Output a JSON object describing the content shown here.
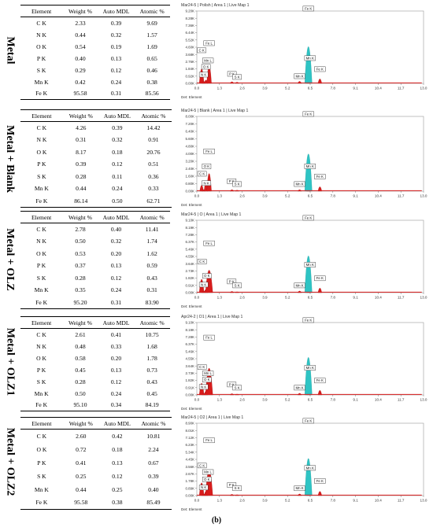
{
  "caption": "(b)",
  "headers": [
    "Element",
    "Weight %",
    "Auto MDL",
    "Atomic %"
  ],
  "panels": [
    {
      "label": "Metal",
      "rows": [
        [
          "C K",
          "2.33",
          "0.39",
          "9.69"
        ],
        [
          "N K",
          "0.44",
          "0.32",
          "1.57"
        ],
        [
          "O K",
          "0.54",
          "0.19",
          "1.69"
        ],
        [
          "P K",
          "0.40",
          "0.13",
          "0.65"
        ],
        [
          "S K",
          "0.29",
          "0.12",
          "0.46"
        ],
        [
          "Mn K",
          "0.42",
          "0.24",
          "0.38"
        ],
        [
          "Fe K",
          "95.58",
          "0.31",
          "85.56"
        ]
      ]
    },
    {
      "label": "Metal + Blank",
      "rows": [
        [
          "C K",
          "4.26",
          "0.39",
          "14.42"
        ],
        [
          "N K",
          "0.31",
          "0.32",
          "0.91"
        ],
        [
          "O K",
          "8.17",
          "0.18",
          "20.76"
        ],
        [
          "P K",
          "0.39",
          "0.12",
          "0.51"
        ],
        [
          "S K",
          "0.28",
          "0.11",
          "0.36"
        ],
        [
          "Mn K",
          "0.44",
          "0.24",
          "0.33"
        ],
        [
          "Fe K",
          "86.14",
          "0.50",
          "62.71"
        ]
      ]
    },
    {
      "label": "Metal + OLZ",
      "rows": [
        [
          "C K",
          "2.78",
          "0.40",
          "11.41"
        ],
        [
          "N K",
          "0.50",
          "0.32",
          "1.74"
        ],
        [
          "O K",
          "0.53",
          "0.20",
          "1.62"
        ],
        [
          "P K",
          "0.37",
          "0.13",
          "0.59"
        ],
        [
          "S K",
          "0.28",
          "0.12",
          "0.43"
        ],
        [
          "Mn K",
          "0.35",
          "0.24",
          "0.31"
        ],
        [
          "Fe K",
          "95.20",
          "0.31",
          "83.90"
        ]
      ]
    },
    {
      "label": "Metal + OLZ1",
      "rows": [
        [
          "C K",
          "2.61",
          "0.41",
          "10.75"
        ],
        [
          "N K",
          "0.48",
          "0.33",
          "1.68"
        ],
        [
          "O K",
          "0.58",
          "0.20",
          "1.78"
        ],
        [
          "P K",
          "0.45",
          "0.13",
          "0.73"
        ],
        [
          "S K",
          "0.28",
          "0.12",
          "0.43"
        ],
        [
          "Mn K",
          "0.50",
          "0.24",
          "0.45"
        ],
        [
          "Fe K",
          "95.10",
          "0.34",
          "84.19"
        ]
      ]
    },
    {
      "label": "Metal + OLZ2",
      "rows": [
        [
          "C K",
          "2.60",
          "0.42",
          "10.81"
        ],
        [
          "O K",
          "0.72",
          "0.18",
          "2.24"
        ],
        [
          "P K",
          "0.41",
          "0.13",
          "0.67"
        ],
        [
          "S K",
          "0.25",
          "0.12",
          "0.39"
        ],
        [
          "Mn K",
          "0.44",
          "0.25",
          "0.40"
        ],
        [
          "Fe K",
          "95.58",
          "0.38",
          "85.49"
        ]
      ]
    }
  ],
  "chart_data": [
    {
      "type": "area",
      "title": "Mar24-5 | Polish | Area 1 | Live Map 1",
      "xlabel": "Det: Element",
      "xlim": [
        0.0,
        13.0
      ],
      "ylim": [
        0,
        9.2
      ],
      "x_ticks": [
        "0.0",
        "1.3",
        "2.6",
        "3.9",
        "5.2",
        "6.5",
        "7.8",
        "9.1",
        "10.4",
        "11.7",
        "13.0"
      ],
      "y_ticks": [
        "0.00K",
        "0.92K",
        "1.84K",
        "2.76K",
        "3.68K",
        "4.60K",
        "5.52K",
        "6.44K",
        "7.36K",
        "8.28K",
        "9.20K"
      ],
      "series": [
        {
          "color": "#d81c1c",
          "peaks": [
            [
              0.277,
              3.5
            ],
            [
              0.392,
              0.5
            ],
            [
              0.525,
              0.8
            ],
            [
              0.705,
              4.3
            ],
            [
              2.013,
              0.4
            ],
            [
              2.307,
              0.3
            ],
            [
              5.894,
              0.5
            ],
            [
              6.398,
              1.6
            ],
            [
              7.057,
              1.1
            ]
          ]
        },
        {
          "color": "#2ec4c4",
          "peaks": [
            [
              6.398,
              8.9
            ]
          ]
        }
      ],
      "peak_labels": [
        {
          "text": "C K",
          "x": 0.277,
          "y": 3.9
        },
        {
          "text": "N K",
          "x": 0.392,
          "y": 0.8
        },
        {
          "text": "O K",
          "x": 0.525,
          "y": 1.8
        },
        {
          "text": "Fe L",
          "x": 0.705,
          "y": 4.8
        },
        {
          "text": "Mn L",
          "x": 0.637,
          "y": 2.6
        },
        {
          "text": "P K",
          "x": 2.013,
          "y": 0.9
        },
        {
          "text": "S K",
          "x": 2.307,
          "y": 0.5
        },
        {
          "text": "Mn K",
          "x": 5.894,
          "y": 0.6
        },
        {
          "text": "Mn K",
          "x": 6.49,
          "y": 2.9
        },
        {
          "text": "Fe K",
          "x": 6.398,
          "y": 9.2
        },
        {
          "text": "Fe K",
          "x": 7.057,
          "y": 1.5
        }
      ]
    },
    {
      "type": "area",
      "title": "Mar24-5 | Blank | Area 1 | Live Map 1",
      "xlabel": "Det: Element",
      "xlim": [
        0.0,
        13.0
      ],
      "ylim": [
        0,
        8.0
      ],
      "x_ticks": [
        "0.0",
        "1.3",
        "2.6",
        "3.9",
        "5.2",
        "6.5",
        "7.8",
        "9.1",
        "10.4",
        "11.7",
        "13.0"
      ],
      "y_ticks": [
        "0.00K",
        "0.80K",
        "1.60K",
        "2.40K",
        "3.20K",
        "4.00K",
        "4.80K",
        "5.60K",
        "6.40K",
        "7.20K",
        "8.00K"
      ],
      "series": [
        {
          "color": "#d81c1c",
          "peaks": [
            [
              0.277,
              1.2
            ],
            [
              0.392,
              0.3
            ],
            [
              0.525,
              1.9
            ],
            [
              0.705,
              3.6
            ],
            [
              2.013,
              0.3
            ],
            [
              2.307,
              0.2
            ],
            [
              5.894,
              0.3
            ],
            [
              6.398,
              1.4
            ],
            [
              7.057,
              0.9
            ]
          ]
        },
        {
          "color": "#2ec4c4",
          "peaks": [
            [
              6.398,
              7.6
            ]
          ]
        }
      ],
      "peak_labels": [
        {
          "text": "Fe L",
          "x": 0.705,
          "y": 4.0
        },
        {
          "text": "O K",
          "x": 0.56,
          "y": 2.4
        },
        {
          "text": "C K",
          "x": 0.3,
          "y": 1.6
        },
        {
          "text": "N K",
          "x": 0.55,
          "y": 0.6
        },
        {
          "text": "P K",
          "x": 2.0,
          "y": 0.8
        },
        {
          "text": "S K",
          "x": 2.307,
          "y": 0.5
        },
        {
          "text": "Mn K",
          "x": 5.894,
          "y": 0.5
        },
        {
          "text": "Mn K",
          "x": 6.49,
          "y": 2.4
        },
        {
          "text": "Fe K",
          "x": 6.398,
          "y": 8.0
        },
        {
          "text": "Fe K",
          "x": 7.057,
          "y": 1.3
        }
      ]
    },
    {
      "type": "area",
      "title": "Mar24-5 | O | Area 1 | Live Map 1",
      "xlabel": "Det: Element",
      "xlim": [
        0.0,
        13.0
      ],
      "ylim": [
        0,
        9.1
      ],
      "x_ticks": [
        "0.0",
        "1.3",
        "2.6",
        "3.9",
        "5.2",
        "6.5",
        "7.8",
        "9.1",
        "10.4",
        "11.7",
        "13.0"
      ],
      "y_ticks": [
        "0.00K",
        "0.91K",
        "1.82K",
        "2.73K",
        "3.64K",
        "4.55K",
        "5.46K",
        "6.37K",
        "7.28K",
        "8.19K",
        "9.10K"
      ],
      "series": [
        {
          "color": "#d81c1c",
          "peaks": [
            [
              0.277,
              3.2
            ],
            [
              0.392,
              0.4
            ],
            [
              0.525,
              0.8
            ],
            [
              0.705,
              5.4
            ],
            [
              2.013,
              0.3
            ],
            [
              2.307,
              0.2
            ],
            [
              5.894,
              0.4
            ],
            [
              6.398,
              1.6
            ],
            [
              7.057,
              1.1
            ]
          ]
        },
        {
          "color": "#2ec4c4",
          "peaks": [
            [
              6.398,
              8.8
            ]
          ]
        }
      ],
      "peak_labels": [
        {
          "text": "Fe L",
          "x": 0.705,
          "y": 5.9
        },
        {
          "text": "C K",
          "x": 0.3,
          "y": 3.6
        },
        {
          "text": "O K",
          "x": 0.58,
          "y": 1.8
        },
        {
          "text": "N K",
          "x": 0.392,
          "y": 0.7
        },
        {
          "text": "P K",
          "x": 2.0,
          "y": 1.1
        },
        {
          "text": "S K",
          "x": 2.307,
          "y": 0.6
        },
        {
          "text": "Mn K",
          "x": 5.894,
          "y": 0.6
        },
        {
          "text": "Mn K",
          "x": 6.49,
          "y": 3.2
        },
        {
          "text": "Fe K",
          "x": 6.398,
          "y": 9.1
        },
        {
          "text": "Fe K",
          "x": 7.057,
          "y": 1.5
        }
      ]
    },
    {
      "type": "area",
      "title": "Apr24-2 | O1 | Area 1 | Live Map 1",
      "xlabel": "Det: Element",
      "xlim": [
        0.0,
        13.0
      ],
      "ylim": [
        0,
        9.1
      ],
      "x_ticks": [
        "0.0",
        "1.3",
        "2.6",
        "3.9",
        "5.2",
        "6.5",
        "7.8",
        "9.1",
        "10.4",
        "11.7",
        "13.0"
      ],
      "y_ticks": [
        "0.00K",
        "0.91K",
        "1.82K",
        "2.73K",
        "3.64K",
        "4.55K",
        "5.46K",
        "6.37K",
        "7.28K",
        "8.19K",
        "9.10K"
      ],
      "series": [
        {
          "color": "#d81c1c",
          "peaks": [
            [
              0.277,
              2.8
            ],
            [
              0.392,
              0.4
            ],
            [
              0.525,
              0.9
            ],
            [
              0.705,
              6.4
            ],
            [
              2.013,
              0.3
            ],
            [
              2.307,
              0.2
            ],
            [
              5.894,
              0.4
            ],
            [
              6.398,
              1.7
            ],
            [
              7.057,
              1.1
            ]
          ]
        },
        {
          "color": "#2ec4c4",
          "peaks": [
            [
              6.398,
              9.0
            ]
          ]
        }
      ],
      "peak_labels": [
        {
          "text": "Fe L",
          "x": 0.705,
          "y": 6.9
        },
        {
          "text": "C K",
          "x": 0.3,
          "y": 3.2
        },
        {
          "text": "Mn L",
          "x": 0.637,
          "y": 2.4
        },
        {
          "text": "O K",
          "x": 0.58,
          "y": 1.6
        },
        {
          "text": "N K",
          "x": 0.392,
          "y": 0.7
        },
        {
          "text": "P K",
          "x": 2.0,
          "y": 1.0
        },
        {
          "text": "S K",
          "x": 2.307,
          "y": 0.6
        },
        {
          "text": "Mn K",
          "x": 5.894,
          "y": 0.6
        },
        {
          "text": "Mn K",
          "x": 6.49,
          "y": 3.1
        },
        {
          "text": "Fe K",
          "x": 6.398,
          "y": 9.1
        },
        {
          "text": "Fe K",
          "x": 7.057,
          "y": 1.5
        }
      ]
    },
    {
      "type": "area",
      "title": "Mar24-5 | O2 | Area 1 | Live Map 1",
      "xlabel": "Det: Element",
      "xlim": [
        0.0,
        13.0
      ],
      "ylim": [
        0,
        8.9
      ],
      "x_ticks": [
        "0.0",
        "1.3",
        "2.6",
        "3.9",
        "5.2",
        "6.5",
        "7.8",
        "9.1",
        "10.4",
        "11.7",
        "13.0"
      ],
      "y_ticks": [
        "0.00K",
        "0.89K",
        "1.78K",
        "2.67K",
        "3.56K",
        "4.45K",
        "5.34K",
        "6.23K",
        "7.12K",
        "8.01K",
        "8.90K"
      ],
      "series": [
        {
          "color": "#d81c1c",
          "peaks": [
            [
              0.277,
              3.0
            ],
            [
              0.392,
              0.4
            ],
            [
              0.525,
              1.0
            ],
            [
              0.705,
              6.0
            ],
            [
              2.013,
              0.3
            ],
            [
              2.307,
              0.2
            ],
            [
              5.894,
              0.4
            ],
            [
              6.398,
              1.6
            ],
            [
              7.057,
              1.0
            ]
          ]
        },
        {
          "color": "#2ec4c4",
          "peaks": [
            [
              6.398,
              8.7
            ]
          ]
        }
      ],
      "peak_labels": [
        {
          "text": "Fe L",
          "x": 0.705,
          "y": 6.5
        },
        {
          "text": "C K",
          "x": 0.3,
          "y": 3.4
        },
        {
          "text": "Mn L",
          "x": 0.637,
          "y": 2.6
        },
        {
          "text": "O K",
          "x": 0.58,
          "y": 1.7
        },
        {
          "text": "N K",
          "x": 0.392,
          "y": 0.7
        },
        {
          "text": "P K",
          "x": 2.0,
          "y": 1.0
        },
        {
          "text": "S K",
          "x": 2.307,
          "y": 0.6
        },
        {
          "text": "Mn K",
          "x": 5.894,
          "y": 0.6
        },
        {
          "text": "Mn K",
          "x": 6.49,
          "y": 3.1
        },
        {
          "text": "Fe K",
          "x": 6.398,
          "y": 8.9
        },
        {
          "text": "Fe K",
          "x": 7.057,
          "y": 1.5
        }
      ]
    }
  ]
}
